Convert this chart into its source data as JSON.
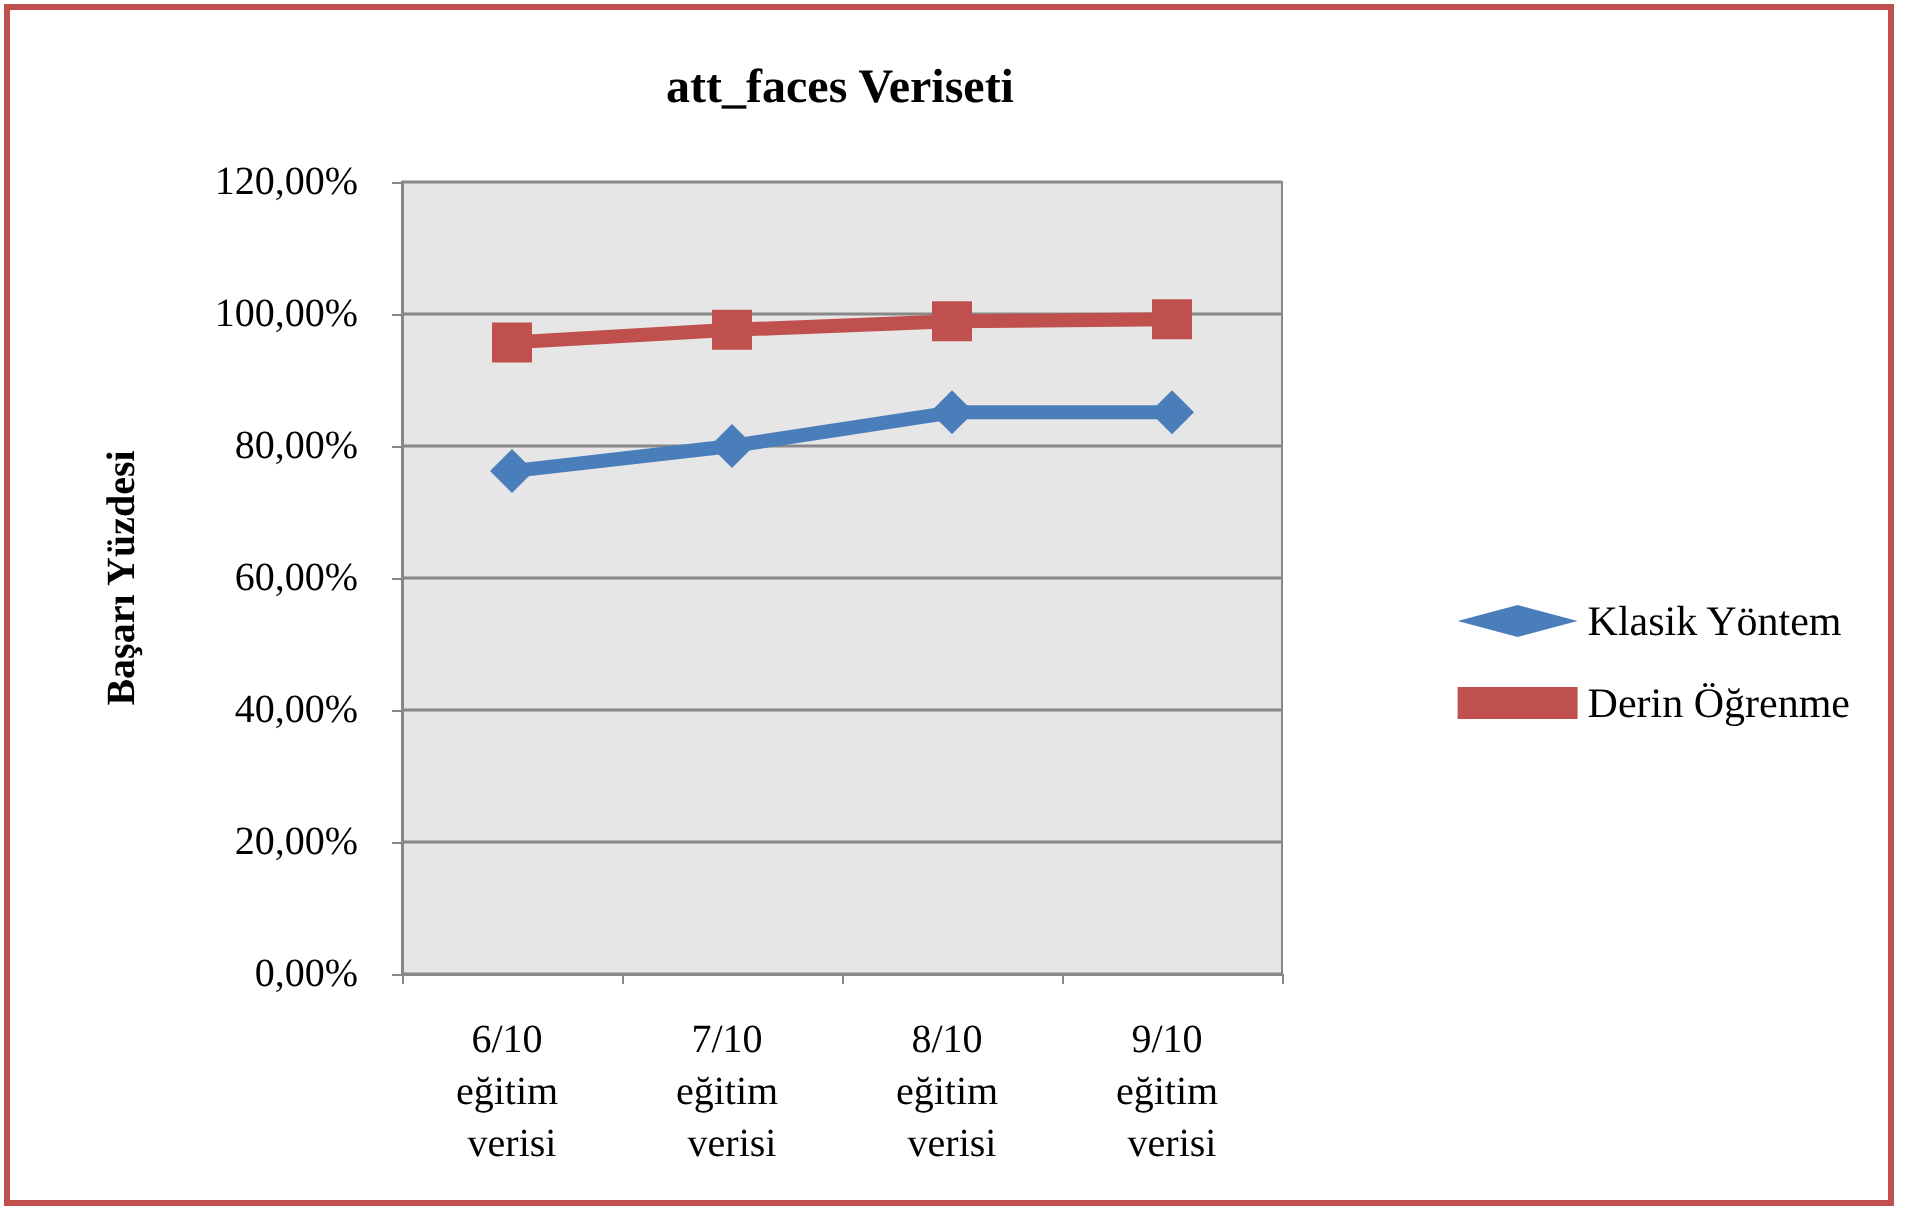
{
  "chart_data": {
    "type": "line",
    "title": "att_faces Veriseti",
    "ylabel": "Başarı Yüzdesi",
    "categories": [
      "6/10 eğitim verisi",
      "7/10 eğitim verisi",
      "8/10 eğitim verisi",
      "9/10 eğitim verisi"
    ],
    "series": [
      {
        "name": "Klasik Yöntem",
        "color": "#4a7ebb",
        "marker": "diamond",
        "values": [
          76.2,
          80,
          85.1,
          85.1
        ]
      },
      {
        "name": "Derin Öğrenme",
        "color": "#c0504d",
        "marker": "square",
        "values": [
          95.7,
          97.6,
          98.9,
          99.2
        ]
      }
    ],
    "ylim": [
      0,
      120
    ],
    "yticks": [
      {
        "value": 0,
        "label": "0,00%"
      },
      {
        "value": 20,
        "label": "20,00%"
      },
      {
        "value": 40,
        "label": "40,00%"
      },
      {
        "value": 60,
        "label": "60,00%"
      },
      {
        "value": 80,
        "label": "80,00%"
      },
      {
        "value": 100,
        "label": "100,00%"
      },
      {
        "value": 120,
        "label": "120,00%"
      }
    ],
    "grid": "y",
    "legend": "right",
    "line_style": "solid"
  }
}
